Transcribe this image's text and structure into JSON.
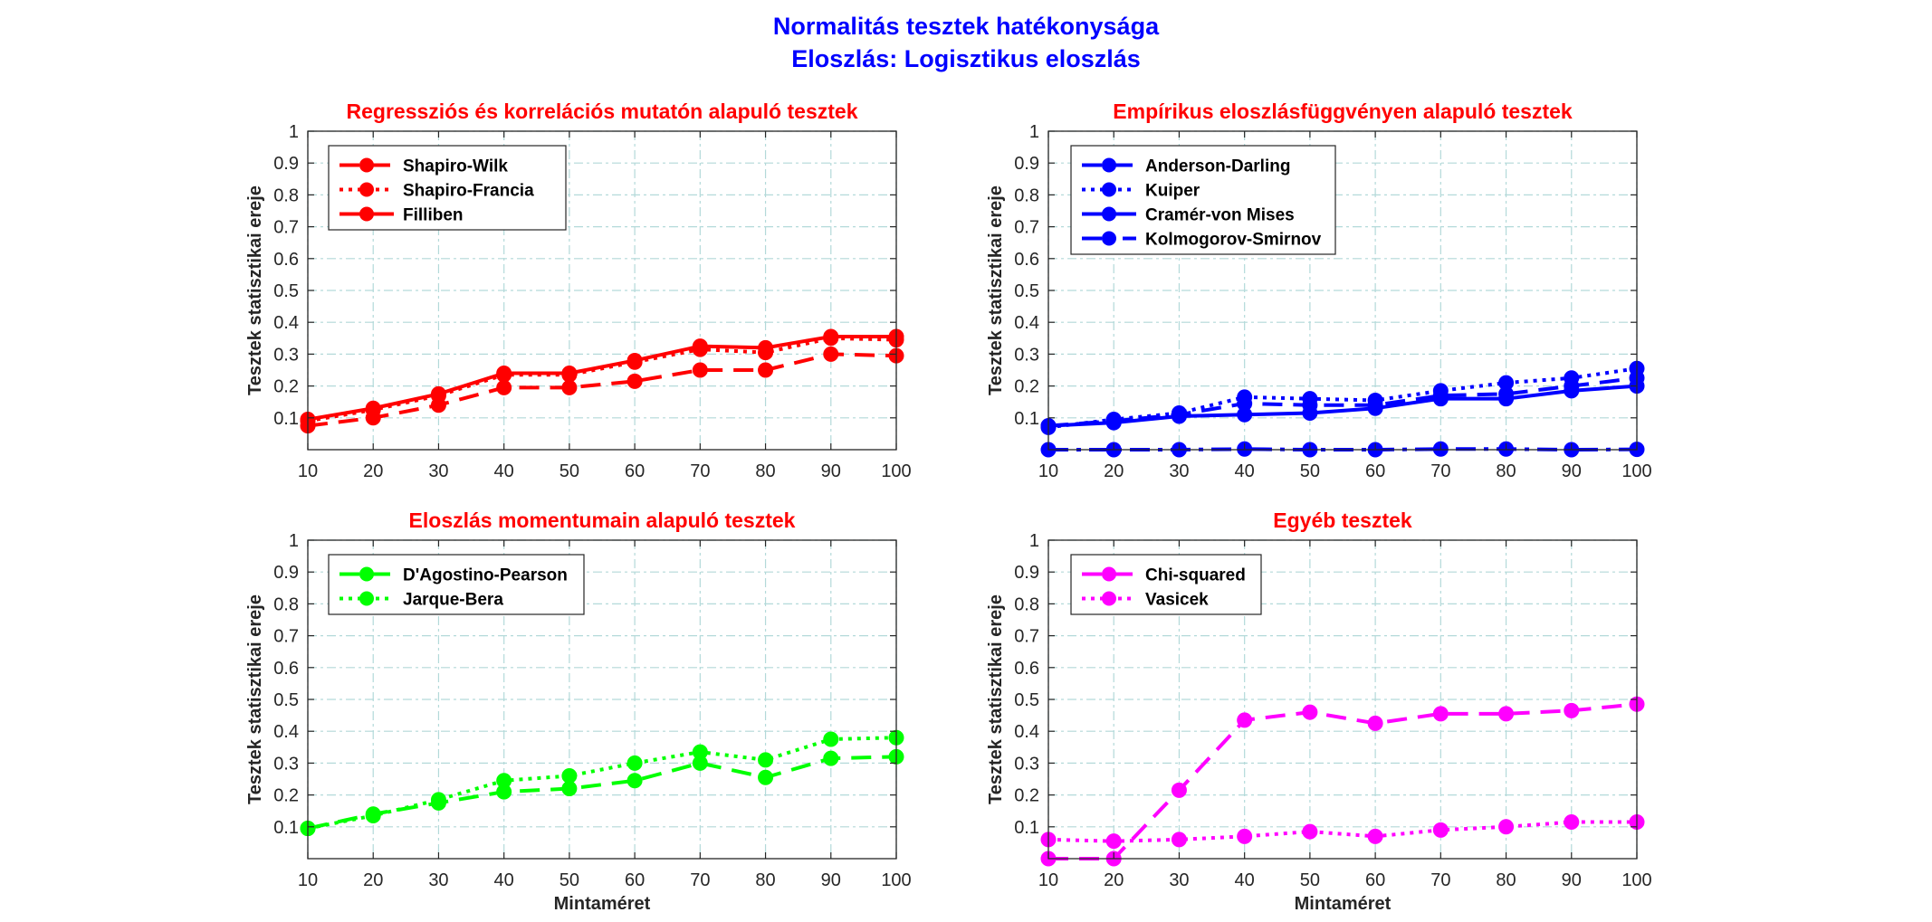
{
  "suptitle": {
    "line1": "Normalitás tesztek hatékonysága",
    "line2": "Eloszlás: Logisztikus eloszlás",
    "color": "#0000ff"
  },
  "colors": {
    "title": "#ff0000",
    "grid": "#b3d9d9",
    "axis": "#262626"
  },
  "chart_data": [
    {
      "type": "line",
      "title": "Regressziós és korrelációs mutatón alapuló tesztek",
      "xlabel": "",
      "ylabel": "Tesztek statisztikai ereje",
      "x": [
        10,
        20,
        30,
        40,
        50,
        60,
        70,
        80,
        90,
        100
      ],
      "xticks": [
        "10",
        "20",
        "30",
        "40",
        "50",
        "60",
        "70",
        "80",
        "90",
        "100"
      ],
      "yticks": [
        "0.1",
        "0.2",
        "0.3",
        "0.4",
        "0.5",
        "0.6",
        "0.7",
        "0.8",
        "0.9",
        "1"
      ],
      "xlim": [
        10,
        100
      ],
      "ylim": [
        0,
        1
      ],
      "grid": true,
      "legend_position": "top-left",
      "series": [
        {
          "name": "Shapiro-Wilk",
          "color": "#ff0000",
          "style": "dashed",
          "values": [
            0.075,
            0.1,
            0.14,
            0.195,
            0.195,
            0.215,
            0.25,
            0.25,
            0.3,
            0.295
          ]
        },
        {
          "name": "Shapiro-Francia",
          "color": "#ff0000",
          "style": "dotted",
          "values": [
            0.09,
            0.125,
            0.17,
            0.235,
            0.235,
            0.275,
            0.315,
            0.305,
            0.35,
            0.345
          ]
        },
        {
          "name": "Filliben",
          "color": "#ff0000",
          "style": "solid",
          "values": [
            0.095,
            0.13,
            0.175,
            0.24,
            0.24,
            0.28,
            0.325,
            0.32,
            0.355,
            0.355
          ]
        }
      ]
    },
    {
      "type": "line",
      "title": "Empírikus eloszlásfüggvényen alapuló tesztek",
      "xlabel": "",
      "ylabel": "Tesztek statisztikai ereje",
      "x": [
        10,
        20,
        30,
        40,
        50,
        60,
        70,
        80,
        90,
        100
      ],
      "xticks": [
        "10",
        "20",
        "30",
        "40",
        "50",
        "60",
        "70",
        "80",
        "90",
        "100"
      ],
      "yticks": [
        "0.1",
        "0.2",
        "0.3",
        "0.4",
        "0.5",
        "0.6",
        "0.7",
        "0.8",
        "0.9",
        "1"
      ],
      "xlim": [
        10,
        100
      ],
      "ylim": [
        0,
        1
      ],
      "grid": true,
      "legend_position": "top-left",
      "series": [
        {
          "name": "Anderson-Darling",
          "color": "#0000ff",
          "style": "dashed",
          "values": [
            0.075,
            0.09,
            0.11,
            0.145,
            0.14,
            0.14,
            0.17,
            0.175,
            0.2,
            0.225
          ]
        },
        {
          "name": "Kuiper",
          "color": "#0000ff",
          "style": "dotted",
          "values": [
            0.07,
            0.095,
            0.115,
            0.165,
            0.16,
            0.155,
            0.185,
            0.21,
            0.225,
            0.255
          ]
        },
        {
          "name": "Cramér-von Mises",
          "color": "#0000ff",
          "style": "solid",
          "values": [
            0.075,
            0.085,
            0.105,
            0.11,
            0.115,
            0.13,
            0.16,
            0.16,
            0.185,
            0.2
          ]
        },
        {
          "name": "Kolmogorov-Smirnov",
          "color": "#0000ff",
          "style": "dashdot",
          "values": [
            0.0,
            0.0,
            0.0,
            0.002,
            0.0,
            0.0,
            0.002,
            0.002,
            0.0,
            0.001
          ]
        }
      ]
    },
    {
      "type": "line",
      "title": "Eloszlás momentumain alapuló tesztek",
      "xlabel": "Mintaméret",
      "ylabel": "Tesztek statisztikai ereje",
      "x": [
        10,
        20,
        30,
        40,
        50,
        60,
        70,
        80,
        90,
        100
      ],
      "xticks": [
        "10",
        "20",
        "30",
        "40",
        "50",
        "60",
        "70",
        "80",
        "90",
        "100"
      ],
      "yticks": [
        "0.1",
        "0.2",
        "0.3",
        "0.4",
        "0.5",
        "0.6",
        "0.7",
        "0.8",
        "0.9",
        "1"
      ],
      "xlim": [
        10,
        100
      ],
      "ylim": [
        0,
        1
      ],
      "grid": true,
      "legend_position": "top-left",
      "series": [
        {
          "name": "D'Agostino-Pearson",
          "color": "#00ff00",
          "style": "dashed",
          "values": [
            0.095,
            0.14,
            0.175,
            0.21,
            0.22,
            0.245,
            0.3,
            0.255,
            0.315,
            0.32
          ]
        },
        {
          "name": "Jarque-Bera",
          "color": "#00ff00",
          "style": "dotted",
          "values": [
            0.095,
            0.135,
            0.185,
            0.245,
            0.26,
            0.3,
            0.335,
            0.31,
            0.375,
            0.38
          ]
        }
      ]
    },
    {
      "type": "line",
      "title": "Egyéb tesztek",
      "xlabel": "Mintaméret",
      "ylabel": "Tesztek statisztikai ereje",
      "x": [
        10,
        20,
        30,
        40,
        50,
        60,
        70,
        80,
        90,
        100
      ],
      "xticks": [
        "10",
        "20",
        "30",
        "40",
        "50",
        "60",
        "70",
        "80",
        "90",
        "100"
      ],
      "yticks": [
        "0.1",
        "0.2",
        "0.3",
        "0.4",
        "0.5",
        "0.6",
        "0.7",
        "0.8",
        "0.9",
        "1"
      ],
      "xlim": [
        10,
        100
      ],
      "ylim": [
        0,
        1
      ],
      "grid": true,
      "legend_position": "top-left",
      "series": [
        {
          "name": "Chi-squared",
          "color": "#ff00ff",
          "style": "dashed",
          "values": [
            0.0,
            0.0,
            0.215,
            0.435,
            0.46,
            0.425,
            0.455,
            0.455,
            0.465,
            0.485
          ]
        },
        {
          "name": "Vasicek",
          "color": "#ff00ff",
          "style": "dotted",
          "values": [
            0.06,
            0.055,
            0.06,
            0.07,
            0.085,
            0.07,
            0.09,
            0.1,
            0.115,
            0.115
          ]
        }
      ]
    }
  ]
}
